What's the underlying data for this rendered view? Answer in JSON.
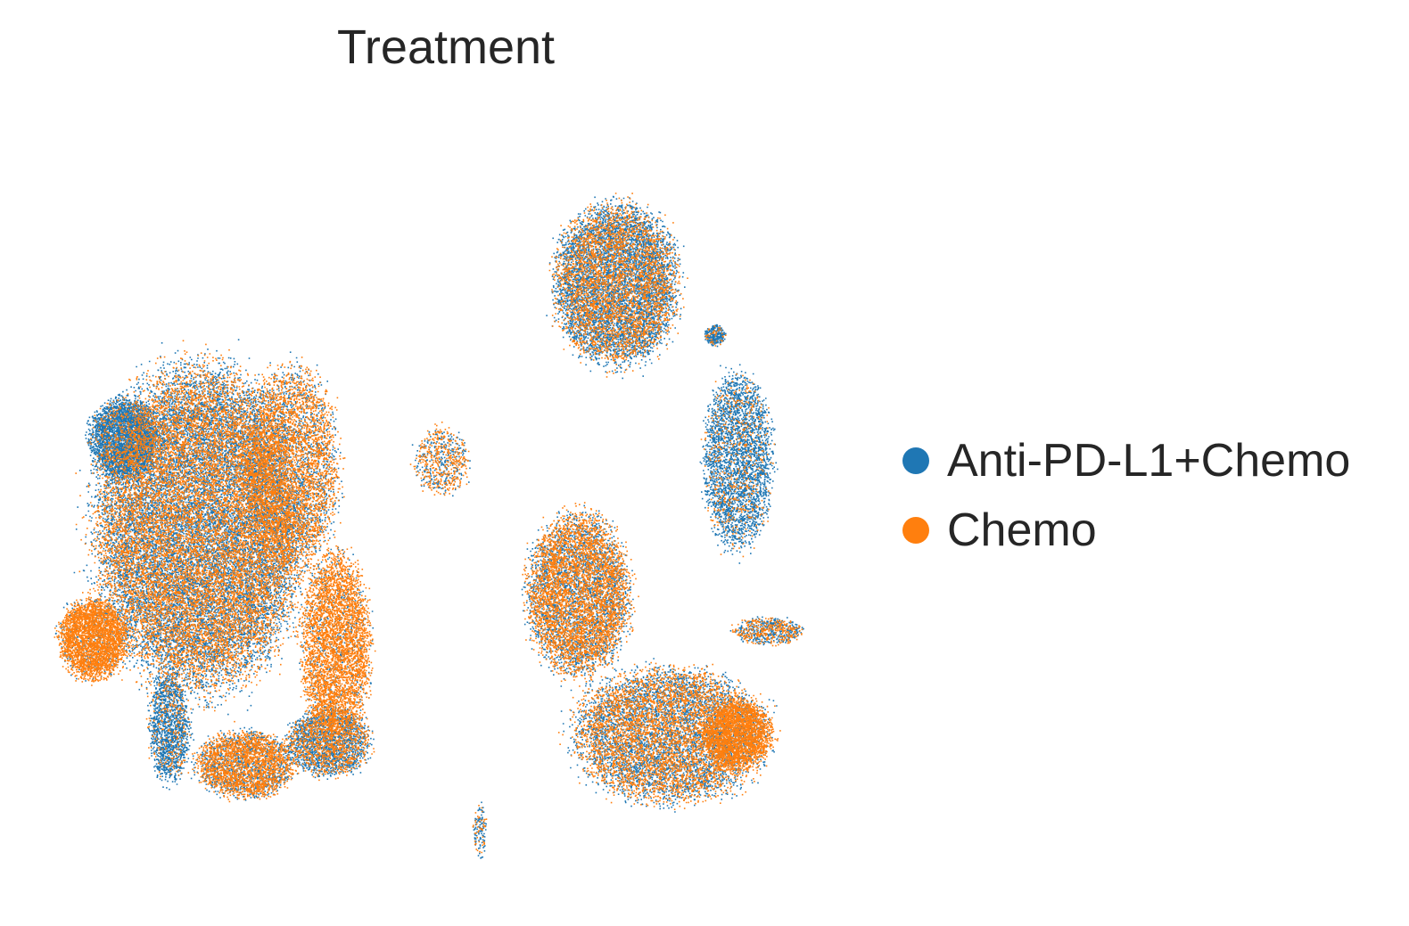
{
  "chart_data": {
    "type": "scatter",
    "title": "Treatment",
    "xlabel": "",
    "ylabel": "",
    "grid": false,
    "axes_visible": false,
    "legend_position": "right",
    "series": [
      {
        "name": "Anti-PD-L1+Chemo",
        "color": "#1f77b4"
      },
      {
        "name": "Chemo",
        "color": "#ff7f0e"
      }
    ],
    "clusters": [
      {
        "cx": 0.18,
        "cy": 0.55,
        "rx": 0.15,
        "ry": 0.24,
        "blue_share": 0.55,
        "points": 26000
      },
      {
        "cx": 0.08,
        "cy": 0.43,
        "rx": 0.05,
        "ry": 0.06,
        "blue_share": 0.9,
        "points": 3500
      },
      {
        "cx": 0.04,
        "cy": 0.7,
        "rx": 0.05,
        "ry": 0.06,
        "blue_share": 0.12,
        "points": 3500
      },
      {
        "cx": 0.36,
        "cy": 0.71,
        "rx": 0.05,
        "ry": 0.14,
        "blue_share": 0.15,
        "points": 4500
      },
      {
        "cx": 0.3,
        "cy": 0.47,
        "rx": 0.07,
        "ry": 0.15,
        "blue_share": 0.35,
        "points": 5000
      },
      {
        "cx": 0.14,
        "cy": 0.82,
        "rx": 0.03,
        "ry": 0.08,
        "blue_share": 0.85,
        "points": 1600
      },
      {
        "cx": 0.24,
        "cy": 0.87,
        "rx": 0.07,
        "ry": 0.05,
        "blue_share": 0.35,
        "points": 3200
      },
      {
        "cx": 0.35,
        "cy": 0.84,
        "rx": 0.06,
        "ry": 0.05,
        "blue_share": 0.6,
        "points": 2600
      },
      {
        "cx": 0.5,
        "cy": 0.46,
        "rx": 0.04,
        "ry": 0.05,
        "blue_share": 0.4,
        "points": 700
      },
      {
        "cx": 0.73,
        "cy": 0.22,
        "rx": 0.09,
        "ry": 0.12,
        "blue_share": 0.62,
        "points": 9000
      },
      {
        "cx": 0.68,
        "cy": 0.64,
        "rx": 0.075,
        "ry": 0.12,
        "blue_share": 0.42,
        "points": 7000
      },
      {
        "cx": 0.8,
        "cy": 0.83,
        "rx": 0.14,
        "ry": 0.1,
        "blue_share": 0.5,
        "points": 9000
      },
      {
        "cx": 0.89,
        "cy": 0.83,
        "rx": 0.05,
        "ry": 0.05,
        "blue_share": 0.1,
        "points": 2500
      },
      {
        "cx": 0.89,
        "cy": 0.46,
        "rx": 0.05,
        "ry": 0.13,
        "blue_share": 0.85,
        "points": 3500
      },
      {
        "cx": 0.86,
        "cy": 0.29,
        "rx": 0.015,
        "ry": 0.015,
        "blue_share": 0.9,
        "points": 300
      },
      {
        "cx": 0.93,
        "cy": 0.69,
        "rx": 0.05,
        "ry": 0.02,
        "blue_share": 0.5,
        "points": 700
      },
      {
        "cx": 0.55,
        "cy": 0.96,
        "rx": 0.01,
        "ry": 0.04,
        "blue_share": 0.7,
        "points": 150
      }
    ]
  }
}
